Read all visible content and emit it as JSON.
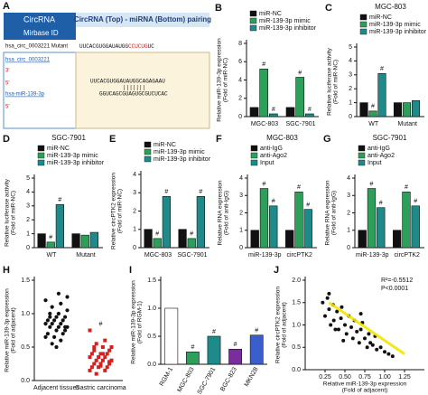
{
  "sequence_panel": {
    "panel": "A",
    "header_left": "CircRNA",
    "header_right": "CircRNA (Top) - miRNA (Bottom) pairing",
    "subheader": "Mirbase ID",
    "mutant_id": "hsa_circ_0003221 Mutant",
    "mutant_seq": [
      "UUCACGUGGAUAUGG",
      "CCUCUG",
      "UC"
    ],
    "circ_id": "hsa_circ_0003221",
    "circ_end": "3'",
    "circ_end2": "5'",
    "circ_seq": "UUCACGUGGAUAUGGCAGAGAAU",
    "mir_id": "hsa-miR-139-3p",
    "mir_end": "5'",
    "mir_seq": "GGUCAGCGUAGUGCGUCUCAC"
  },
  "chart_data": [
    {
      "type": "bar",
      "panel": "B",
      "ylabel": [
        "Relative miR-139-3p expression",
        "(Fold of miR-NC)"
      ],
      "categories": [
        "MGC-803",
        "SGC-7901"
      ],
      "series": [
        {
          "name": "miR-NC",
          "color": "#111111",
          "values": [
            1,
            1
          ],
          "sig": [
            null,
            null
          ]
        },
        {
          "name": "miR-139-3p mimic",
          "color": "#2ca05a",
          "values": [
            5.2,
            4.3
          ],
          "sig": [
            "#",
            "#"
          ]
        },
        {
          "name": "miR-139-3p inhibitor",
          "color": "#1f8a8a",
          "values": [
            0.3,
            0.3
          ],
          "sig": [
            "#",
            "#"
          ]
        }
      ],
      "ylim": [
        0,
        8
      ],
      "yticks": [
        0,
        2,
        4,
        6,
        8
      ],
      "legend": "top-left"
    },
    {
      "type": "bar",
      "panel": "C",
      "title": "MGC-803",
      "ylabel": [
        "Relative luciferase activity",
        "(Fold of miR-NC)"
      ],
      "categories": [
        "WT",
        "Mutant"
      ],
      "series": [
        {
          "name": "miR-NC",
          "color": "#111111",
          "values": [
            1,
            1
          ],
          "sig": [
            null,
            null
          ]
        },
        {
          "name": "miR-139-3p mimic",
          "color": "#2ca05a",
          "values": [
            0.4,
            1
          ],
          "sig": [
            "#",
            null
          ]
        },
        {
          "name": "miR-139-3p inhibitor",
          "color": "#1f8a8a",
          "values": [
            3.1,
            1.15
          ],
          "sig": [
            "#",
            null
          ]
        }
      ],
      "ylim": [
        0,
        5
      ],
      "yticks": [
        0,
        1,
        2,
        3,
        4,
        5
      ],
      "legend": "top-left"
    },
    {
      "type": "bar",
      "panel": "D",
      "title": "SGC-7901",
      "ylabel": [
        "Relative luciferase activity",
        "(Fold of miR-NC)"
      ],
      "categories": [
        "WT",
        "Mutant"
      ],
      "series": [
        {
          "name": "miR-NC",
          "color": "#111111",
          "values": [
            1,
            1
          ],
          "sig": [
            null,
            null
          ]
        },
        {
          "name": "miR-139-3p mimic",
          "color": "#2ca05a",
          "values": [
            0.4,
            0.9
          ],
          "sig": [
            "#",
            null
          ]
        },
        {
          "name": "miR-139-3p inhibitor",
          "color": "#1f8a8a",
          "values": [
            3.1,
            1.1
          ],
          "sig": [
            "#",
            null
          ]
        }
      ],
      "ylim": [
        0,
        5
      ],
      "yticks": [
        0,
        1,
        2,
        3,
        4,
        5
      ],
      "legend": "top-left"
    },
    {
      "type": "bar",
      "panel": "E",
      "ylabel": [
        "Relative circPTK2 expression",
        "(Fold of miR-NC)"
      ],
      "categories": [
        "MGC-803",
        "SGC-7901"
      ],
      "series": [
        {
          "name": "miR-NC",
          "color": "#111111",
          "values": [
            1,
            1
          ],
          "sig": [
            null,
            null
          ]
        },
        {
          "name": "miR-139-3p mimic",
          "color": "#2ca05a",
          "values": [
            0.5,
            0.5
          ],
          "sig": [
            "#",
            "#"
          ]
        },
        {
          "name": "miR-139-3p inhibitor",
          "color": "#1f8a8a",
          "values": [
            2.8,
            2.8
          ],
          "sig": [
            "#",
            "#"
          ]
        }
      ],
      "ylim": [
        0,
        4
      ],
      "yticks": [
        0,
        1,
        2,
        3,
        4
      ],
      "legend": "top-left"
    },
    {
      "type": "bar",
      "panel": "F",
      "title": "MGC-803",
      "ylabel": [
        "Relative RNA expression",
        "(Fold of anti-IgG)"
      ],
      "categories": [
        "miR-139-3p",
        "circPTK2"
      ],
      "series": [
        {
          "name": "anti-IgG",
          "color": "#111111",
          "values": [
            1,
            1
          ],
          "sig": [
            null,
            null
          ]
        },
        {
          "name": "anti-Ago2",
          "color": "#2ca05a",
          "values": [
            3.4,
            3.2
          ],
          "sig": [
            "#",
            "#"
          ]
        },
        {
          "name": "Input",
          "color": "#1f8a8a",
          "values": [
            2.4,
            2.2
          ],
          "sig": [
            "#",
            "#"
          ]
        }
      ],
      "ylim": [
        0,
        4
      ],
      "yticks": [
        0,
        1,
        2,
        3,
        4
      ],
      "legend": "top-left"
    },
    {
      "type": "bar",
      "panel": "G",
      "title": "SGC-7901",
      "ylabel": [
        "Relative RNA expression",
        "(Fold of anti-IgG)"
      ],
      "categories": [
        "miR-139-3p",
        "circPTK2"
      ],
      "series": [
        {
          "name": "anti-IgG",
          "color": "#111111",
          "values": [
            1,
            1
          ],
          "sig": [
            null,
            null
          ]
        },
        {
          "name": "anti-Ago2",
          "color": "#2ca05a",
          "values": [
            3.4,
            3.2
          ],
          "sig": [
            "#",
            "#"
          ]
        },
        {
          "name": "Input",
          "color": "#1f8a8a",
          "values": [
            2.3,
            2.4
          ],
          "sig": [
            "#",
            "#"
          ]
        }
      ],
      "ylim": [
        0,
        4
      ],
      "yticks": [
        0,
        1,
        2,
        3,
        4
      ],
      "legend": "top-left"
    },
    {
      "type": "strip",
      "panel": "H",
      "ylabel": [
        "Relative miR-139-3p expression",
        "(Fold of adjacent)"
      ],
      "categories": [
        "Adjacent tissues",
        "Gastric carcinoma"
      ],
      "series": [
        {
          "name": "Adjacent tissues",
          "color": "#111111",
          "marker": "circle",
          "sig": null,
          "values": [
            1.2,
            1.15,
            1.1,
            1.05,
            1.0,
            1.0,
            0.95,
            0.95,
            0.9,
            0.9,
            0.9,
            0.85,
            0.85,
            0.85,
            0.8,
            0.8,
            0.8,
            0.75,
            0.75,
            0.7,
            0.7,
            0.65,
            0.65,
            0.6,
            0.55,
            1.25,
            1.3,
            0.95,
            0.8,
            0.5
          ]
        },
        {
          "name": "Gastric carcinoma",
          "color": "#d62020",
          "marker": "square",
          "sig": "#",
          "values": [
            0.75,
            0.6,
            0.55,
            0.5,
            0.5,
            0.45,
            0.45,
            0.4,
            0.4,
            0.4,
            0.35,
            0.35,
            0.35,
            0.3,
            0.3,
            0.3,
            0.25,
            0.25,
            0.25,
            0.2,
            0.2,
            0.2,
            0.15,
            0.15,
            0.1,
            0.3,
            0.4,
            0.5,
            0.28,
            0.22
          ]
        }
      ],
      "ylim": [
        0,
        1.5
      ],
      "yticks": [
        {
          "value": 0,
          "label": "0.0"
        },
        0.5,
        {
          "value": 1,
          "label": "1.0"
        },
        1.5
      ]
    },
    {
      "type": "bar",
      "panel": "I",
      "ylabel": [
        "Relative miR-139-3p expression",
        "(Fold of RGM-1)"
      ],
      "categories": [
        "RGM-1",
        "MGC-803",
        "SGC-7901",
        "BGC-823",
        "MKN28"
      ],
      "values": [
        1,
        0.22,
        0.5,
        0.27,
        0.52
      ],
      "sig": [
        null,
        "#",
        "#",
        "#",
        "#"
      ],
      "colors": [
        "#ffffff",
        "#2ca05a",
        "#1f8a8a",
        "#7b2d9e",
        "#3a5fcd"
      ],
      "ylim": [
        0,
        1.5
      ],
      "yticks": [
        {
          "value": 0,
          "label": "0.0"
        },
        0.5,
        {
          "value": 1,
          "label": "1.0"
        },
        1.5
      ],
      "rotate_labels": true
    },
    {
      "type": "scatter",
      "panel": "J",
      "ylabel": [
        "Relative circPTK2 expression",
        "(Fold of adjacent)"
      ],
      "xlabel": [
        "Relative miR-139-3p expression",
        "(Fold of adjacent)"
      ],
      "annotations": [
        "R²=-0.5512",
        "P<0.0001"
      ],
      "color": "#111111",
      "x": [
        0.22,
        0.25,
        0.28,
        0.3,
        0.32,
        0.35,
        0.36,
        0.4,
        0.42,
        0.45,
        0.46,
        0.5,
        0.52,
        0.55,
        0.58,
        0.6,
        0.62,
        0.65,
        0.68,
        0.7,
        0.72,
        0.75,
        0.78,
        0.8,
        0.82,
        0.85,
        0.88,
        0.9,
        0.95,
        1.0,
        1.05,
        1.1,
        0.38,
        0.48,
        0.7,
        0.3
      ],
      "y": [
        1.5,
        1.2,
        1.6,
        1.35,
        1.0,
        1.45,
        1.1,
        1.3,
        0.9,
        1.15,
        1.4,
        1.0,
        0.8,
        1.2,
        0.95,
        0.7,
        1.1,
        0.85,
        0.6,
        0.9,
        1.05,
        0.7,
        0.5,
        0.8,
        0.6,
        0.55,
        0.75,
        0.45,
        0.5,
        0.4,
        0.35,
        0.3,
        0.9,
        0.65,
        1.25,
        1.7
      ],
      "trendline": {
        "color": "#f2e600",
        "x": [
          0.3,
          1.25
        ],
        "y": [
          1.5,
          0.35
        ]
      },
      "xlim": [
        0,
        1.5
      ],
      "xticks": [
        0.25,
        {
          "value": 0.5,
          "label": "0.50"
        },
        0.75,
        {
          "value": 1,
          "label": "1.00"
        },
        1.25
      ],
      "ylim": [
        0,
        2
      ],
      "yticks": [
        {
          "value": 0,
          "label": "0.0"
        },
        0.5,
        {
          "value": 1,
          "label": "1.0"
        },
        1.5,
        {
          "value": 2,
          "label": "2.0"
        }
      ]
    }
  ]
}
